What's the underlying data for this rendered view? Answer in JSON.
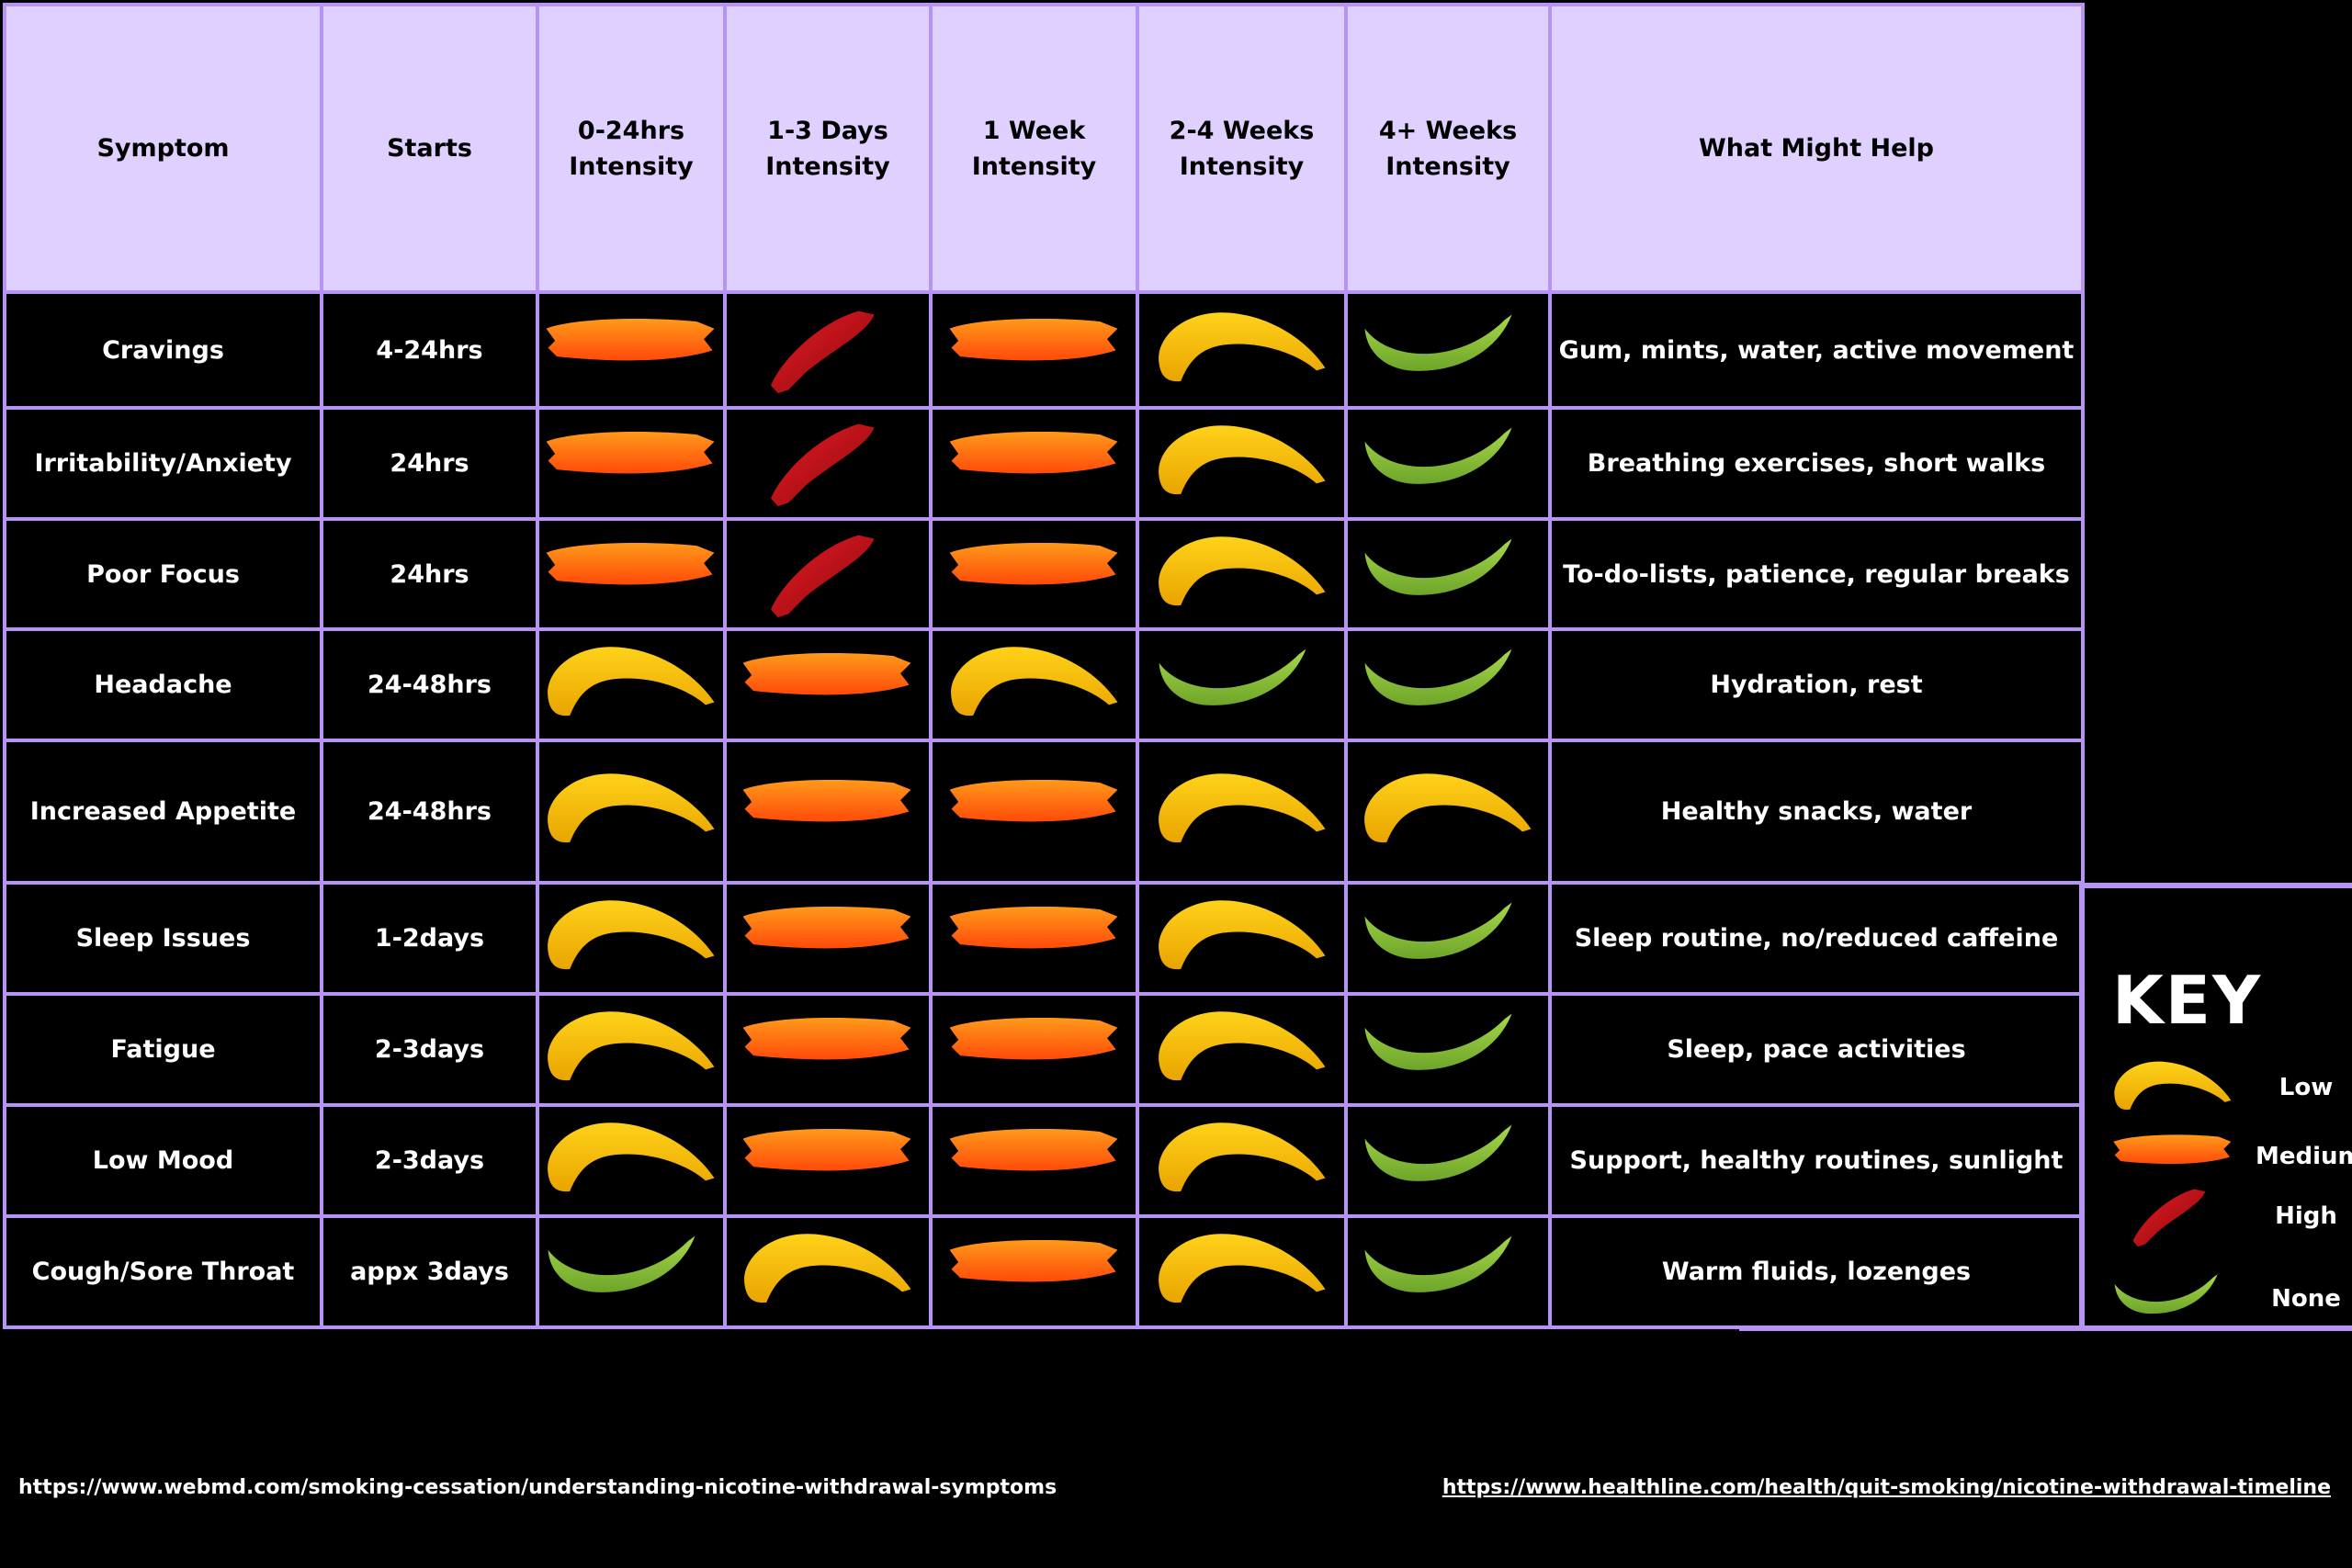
{
  "table": {
    "headers": [
      "Symptom",
      "Starts",
      "0-24hrs Intensity",
      "1-3 Days Intensity",
      "1 Week Intensity",
      "2-4 Weeks Intensity",
      "4+ Weeks Intensity",
      "What Might Help"
    ],
    "rows": [
      {
        "symptom": "Cravings",
        "starts": "4-24hrs",
        "levels": [
          "medium",
          "high",
          "medium",
          "low",
          "none"
        ],
        "help": "Gum, mints, water, active movement"
      },
      {
        "symptom": "Irritability/Anxiety",
        "starts": "24hrs",
        "levels": [
          "medium",
          "high",
          "medium",
          "low",
          "none"
        ],
        "help": "Breathing exercises, short walks"
      },
      {
        "symptom": "Poor Focus",
        "starts": "24hrs",
        "levels": [
          "medium",
          "high",
          "medium",
          "low",
          "none"
        ],
        "help": "To-do-lists, patience, regular breaks"
      },
      {
        "symptom": "Headache",
        "starts": "24-48hrs",
        "levels": [
          "low",
          "medium",
          "low",
          "none",
          "none"
        ],
        "help": "Hydration, rest"
      },
      {
        "symptom": "Increased Appetite",
        "starts": "24-48hrs",
        "levels": [
          "low",
          "medium",
          "medium",
          "low",
          "low"
        ],
        "help": "Healthy snacks, water"
      },
      {
        "symptom": "Sleep Issues",
        "starts": "1-2days",
        "levels": [
          "low",
          "medium",
          "medium",
          "low",
          "none"
        ],
        "help": "Sleep routine, no/reduced caffeine"
      },
      {
        "symptom": "Fatigue",
        "starts": "2-3days",
        "levels": [
          "low",
          "medium",
          "medium",
          "low",
          "none"
        ],
        "help": "Sleep, pace activities"
      },
      {
        "symptom": "Low Mood",
        "starts": "2-3days",
        "levels": [
          "low",
          "medium",
          "medium",
          "low",
          "none"
        ],
        "help": "Support, healthy routines, sunlight"
      },
      {
        "symptom": "Cough/Sore Throat",
        "starts": "appx 3days",
        "levels": [
          "none",
          "low",
          "medium",
          "low",
          "none"
        ],
        "help": "Warm fluids, lozenges"
      }
    ]
  },
  "key": {
    "title": "KEY",
    "items": [
      {
        "level": "low",
        "label": "Low"
      },
      {
        "level": "medium",
        "label": "Medium"
      },
      {
        "level": "high",
        "label": "High"
      },
      {
        "level": "none",
        "label": "None"
      }
    ]
  },
  "colors": {
    "low": "#f5b800",
    "medium": "#ff6a10",
    "high": "#c8101a",
    "none": "#8cc63f",
    "header_bg": "#dfd0ff",
    "border": "#b693f5"
  },
  "sources": {
    "left": "https://www.webmd.com/smoking-cessation/understanding-nicotine-withdrawal-symptoms",
    "right": "https://www.healthline.com/health/quit-smoking/nicotine-withdrawal-timeline"
  }
}
